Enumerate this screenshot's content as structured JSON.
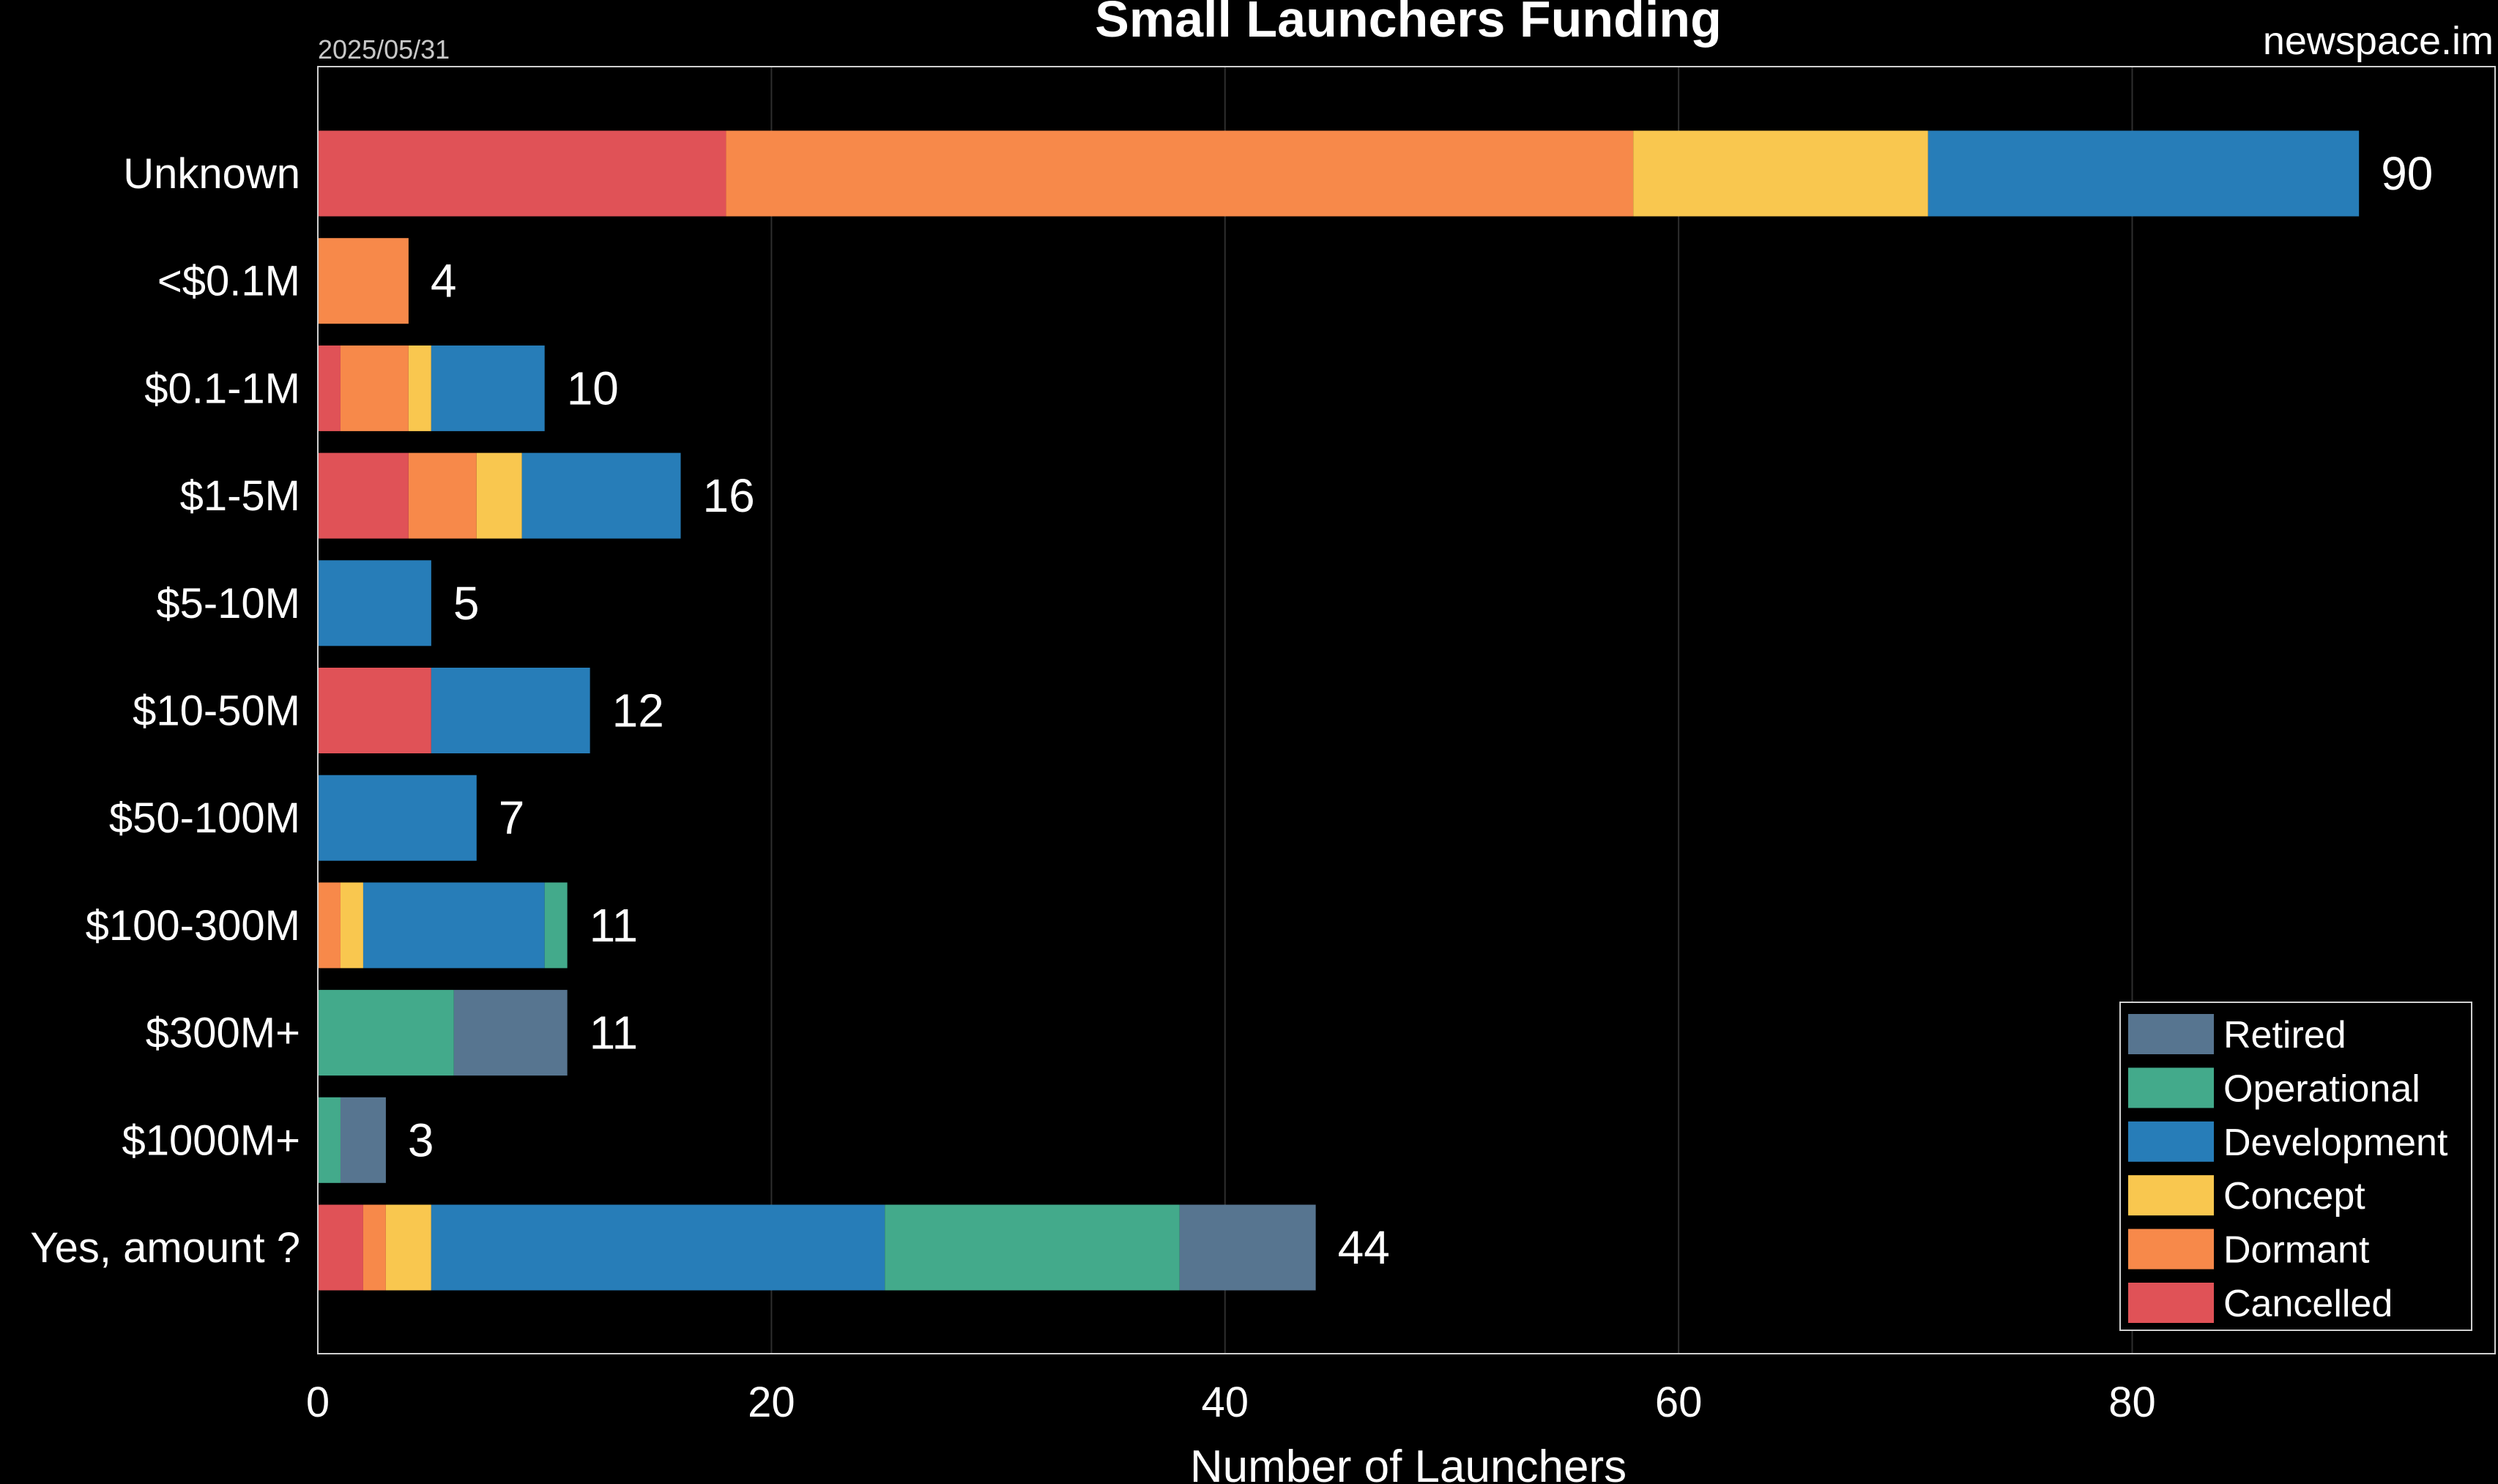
{
  "chart_data": {
    "type": "bar",
    "orientation": "horizontal",
    "stacked": true,
    "title": "Small Launchers Funding",
    "subtitle": "2025/05/31",
    "source": "newspace.im",
    "xlabel": "Number of Launchers",
    "ylabel": "",
    "xlim": [
      0,
      96
    ],
    "xticks": [
      0,
      20,
      40,
      60,
      80
    ],
    "grid": "vertical",
    "legend_position": "bottom-right",
    "categories": [
      "Unknown",
      "<$0.1M",
      "$0.1-1M",
      "$1-5M",
      "$5-10M",
      "$10-50M",
      "$50-100M",
      "$100-300M",
      "$300M+",
      "$1000M+",
      "Yes, amount ?"
    ],
    "totals": [
      90,
      4,
      10,
      16,
      5,
      12,
      7,
      11,
      11,
      3,
      44
    ],
    "series": [
      {
        "name": "Cancelled",
        "color": "#e05257",
        "values": [
          18,
          0,
          1,
          4,
          0,
          5,
          0,
          0,
          0,
          0,
          2
        ]
      },
      {
        "name": "Dormant",
        "color": "#f7894a",
        "values": [
          40,
          4,
          3,
          3,
          0,
          0,
          0,
          1,
          0,
          0,
          1
        ]
      },
      {
        "name": "Concept",
        "color": "#f9c74f",
        "values": [
          13,
          0,
          1,
          2,
          0,
          0,
          0,
          1,
          0,
          0,
          2
        ]
      },
      {
        "name": "Development",
        "color": "#277db8",
        "values": [
          19,
          0,
          5,
          7,
          5,
          7,
          7,
          8,
          0,
          0,
          20
        ]
      },
      {
        "name": "Operational",
        "color": "#43aa8b",
        "values": [
          0,
          0,
          0,
          0,
          0,
          0,
          0,
          1,
          6,
          1,
          13
        ]
      },
      {
        "name": "Retired",
        "color": "#577590",
        "values": [
          0,
          0,
          0,
          0,
          0,
          0,
          0,
          0,
          5,
          2,
          6
        ]
      }
    ],
    "legend_order": [
      "Retired",
      "Operational",
      "Development",
      "Concept",
      "Dormant",
      "Cancelled"
    ]
  }
}
